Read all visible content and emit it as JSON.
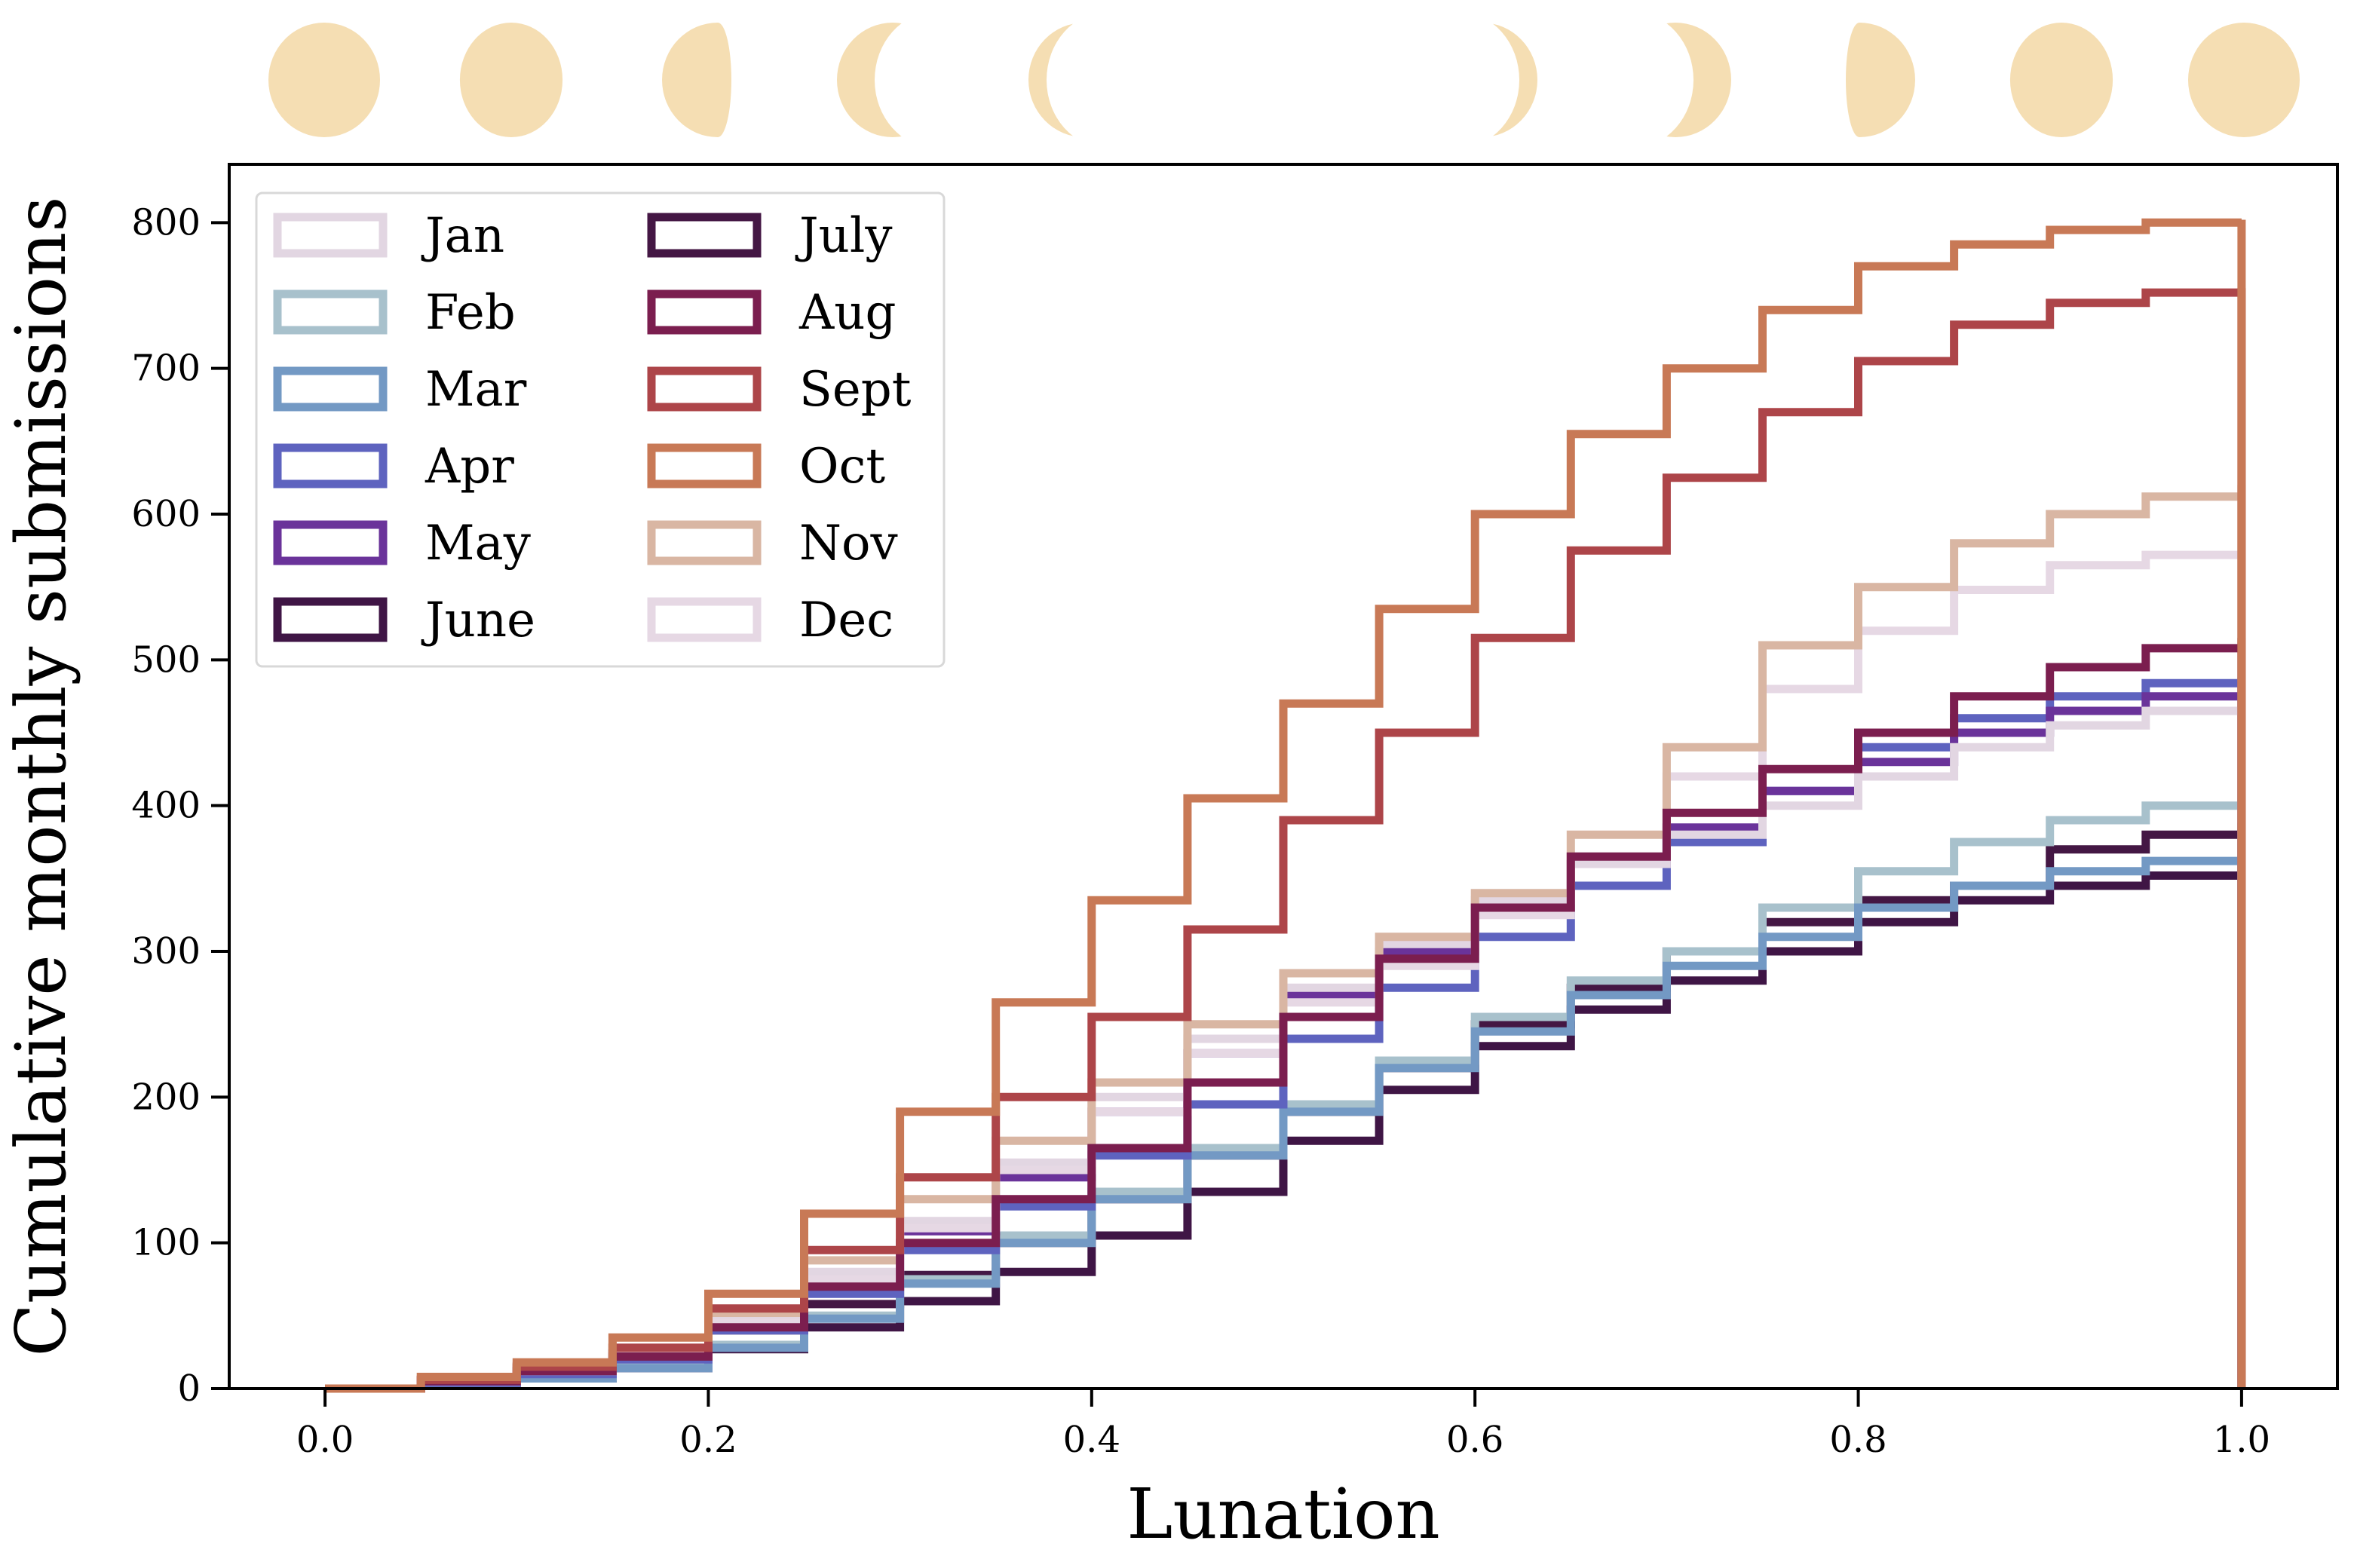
{
  "chart_data": {
    "type": "line",
    "title": "",
    "xlabel": "Lunation",
    "ylabel": "Cumulative monthly submissions",
    "xlim": [
      -0.05,
      1.05
    ],
    "ylim": [
      0,
      840
    ],
    "xticks": [
      0.0,
      0.2,
      0.4,
      0.6,
      0.8,
      1.0
    ],
    "xtick_labels": [
      "0.0",
      "0.2",
      "0.4",
      "0.6",
      "0.8",
      "1.0"
    ],
    "yticks": [
      0,
      100,
      200,
      300,
      400,
      500,
      600,
      700,
      800
    ],
    "ytick_labels": [
      "0",
      "100",
      "200",
      "300",
      "400",
      "500",
      "600",
      "700",
      "800"
    ],
    "grid": false,
    "legend_position": "upper-left",
    "legend_columns": 2,
    "step_style": "cumulative-histogram",
    "x": [
      0.0,
      0.05,
      0.1,
      0.15,
      0.2,
      0.25,
      0.3,
      0.35,
      0.4,
      0.45,
      0.5,
      0.55,
      0.6,
      0.65,
      0.7,
      0.75,
      0.8,
      0.85,
      0.9,
      0.95,
      1.0
    ],
    "series": [
      {
        "name": "Jan",
        "color": "#e2d6e2",
        "values": [
          0,
          6,
          16,
          28,
          50,
          80,
          115,
          155,
          200,
          240,
          275,
          305,
          335,
          360,
          380,
          400,
          420,
          440,
          455,
          465,
          470
        ]
      },
      {
        "name": "Feb",
        "color": "#a8c1cc",
        "values": [
          0,
          3,
          8,
          16,
          30,
          50,
          75,
          105,
          135,
          165,
          195,
          225,
          255,
          280,
          300,
          330,
          355,
          375,
          390,
          400,
          405
        ]
      },
      {
        "name": "Mar",
        "color": "#7399c4",
        "values": [
          0,
          3,
          7,
          14,
          28,
          48,
          72,
          100,
          130,
          160,
          190,
          220,
          245,
          270,
          290,
          310,
          330,
          345,
          355,
          362,
          365
        ]
      },
      {
        "name": "Apr",
        "color": "#5e63bf",
        "values": [
          0,
          4,
          10,
          20,
          40,
          65,
          95,
          125,
          160,
          195,
          240,
          275,
          310,
          345,
          375,
          410,
          440,
          460,
          475,
          484,
          488
        ]
      },
      {
        "name": "May",
        "color": "#6a339a",
        "values": [
          0,
          5,
          12,
          24,
          45,
          75,
          108,
          145,
          190,
          230,
          270,
          300,
          330,
          360,
          385,
          410,
          430,
          450,
          465,
          475,
          482
        ]
      },
      {
        "name": "June",
        "color": "#3f1545",
        "values": [
          0,
          3,
          7,
          14,
          27,
          42,
          60,
          80,
          105,
          135,
          170,
          205,
          235,
          260,
          280,
          300,
          320,
          335,
          345,
          352,
          355
        ]
      },
      {
        "name": "July",
        "color": "#441744",
        "values": [
          0,
          6,
          14,
          24,
          40,
          58,
          78,
          100,
          130,
          160,
          190,
          220,
          250,
          275,
          300,
          320,
          335,
          345,
          370,
          380,
          388
        ]
      },
      {
        "name": "Aug",
        "color": "#7b1e4f",
        "values": [
          0,
          5,
          12,
          22,
          42,
          70,
          100,
          130,
          165,
          210,
          255,
          295,
          330,
          365,
          395,
          425,
          450,
          475,
          495,
          508,
          515
        ]
      },
      {
        "name": "Sept",
        "color": "#ad4549",
        "values": [
          0,
          6,
          15,
          28,
          55,
          95,
          145,
          200,
          255,
          315,
          390,
          450,
          515,
          575,
          625,
          670,
          705,
          730,
          745,
          752,
          755
        ]
      },
      {
        "name": "Oct",
        "color": "#c87956",
        "values": [
          0,
          8,
          18,
          35,
          65,
          120,
          190,
          265,
          335,
          405,
          470,
          535,
          600,
          655,
          700,
          740,
          770,
          785,
          795,
          800,
          802
        ]
      },
      {
        "name": "Nov",
        "color": "#d9b6a3",
        "values": [
          0,
          6,
          14,
          28,
          52,
          88,
          130,
          170,
          210,
          250,
          285,
          310,
          340,
          380,
          440,
          510,
          550,
          580,
          600,
          612,
          620
        ]
      },
      {
        "name": "Dec",
        "color": "#e6d8e4",
        "values": [
          0,
          5,
          12,
          24,
          45,
          75,
          110,
          150,
          190,
          230,
          265,
          290,
          325,
          365,
          420,
          480,
          520,
          548,
          565,
          572,
          575
        ]
      }
    ],
    "moon_phases": [
      {
        "name": "full-moon-icon",
        "color": "#f5deb3"
      },
      {
        "name": "waning-gibbous-moon-icon",
        "color": "#f5deb3"
      },
      {
        "name": "last-quarter-moon-icon",
        "color": "#f5deb3"
      },
      {
        "name": "waning-crescent-moon-icon",
        "color": "#f5deb3"
      },
      {
        "name": "thin-crescent-moon-icon",
        "color": "#f5deb3"
      },
      {
        "name": "new-moon-icon",
        "color": "#f5deb3"
      },
      {
        "name": "thin-crescent-moon-icon",
        "color": "#f5deb3"
      },
      {
        "name": "waxing-crescent-moon-icon",
        "color": "#f5deb3"
      },
      {
        "name": "first-quarter-moon-icon",
        "color": "#f5deb3"
      },
      {
        "name": "waxing-gibbous-moon-icon",
        "color": "#f5deb3"
      },
      {
        "name": "full-moon-icon",
        "color": "#f5deb3"
      }
    ]
  }
}
